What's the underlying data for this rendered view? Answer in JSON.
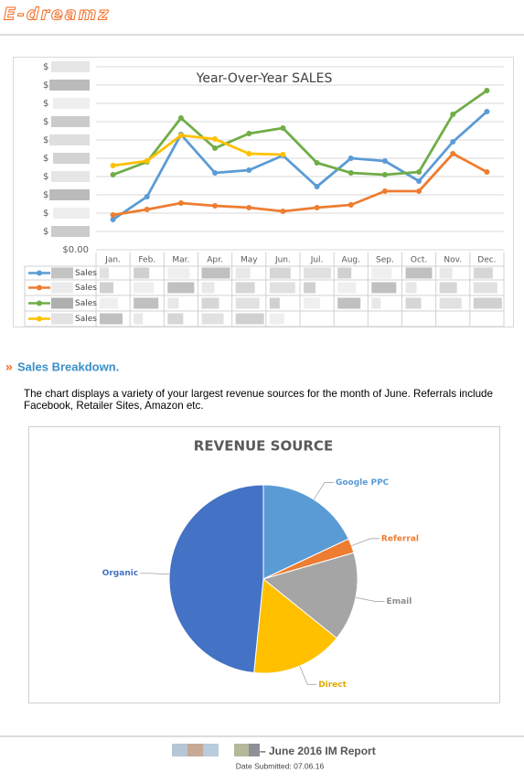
{
  "header": {
    "logo": "E-dreamz"
  },
  "chart_data": [
    {
      "type": "line",
      "title": "Year-Over-Year SALES",
      "categories": [
        "Jan.",
        "Feb.",
        "Mar.",
        "Apr.",
        "May",
        "Jun.",
        "Jul.",
        "Aug.",
        "Sep.",
        "Oct.",
        "Nov.",
        "Dec."
      ],
      "ylim": [
        0,
        10
      ],
      "yticks": [
        {
          "value": 0,
          "label": "$0.00"
        },
        {
          "value": 1,
          "label": "$"
        },
        {
          "value": 2,
          "label": "$"
        },
        {
          "value": 3,
          "label": "$"
        },
        {
          "value": 4,
          "label": "$"
        },
        {
          "value": 5,
          "label": "$"
        },
        {
          "value": 6,
          "label": "$"
        },
        {
          "value": 7,
          "label": "$"
        },
        {
          "value": 8,
          "label": "$"
        },
        {
          "value": 9,
          "label": "$"
        },
        {
          "value": 10,
          "label": "$"
        }
      ],
      "grid": true,
      "series": [
        {
          "name": "Sales",
          "color": "#5b9bd5",
          "values": [
            1.65,
            2.9,
            6.3,
            4.2,
            4.35,
            5.15,
            3.45,
            5.0,
            4.85,
            3.75,
            5.9,
            7.55
          ]
        },
        {
          "name": "Sales",
          "color": "#ed7d31",
          "values": [
            1.9,
            2.2,
            2.55,
            2.4,
            2.3,
            2.1,
            2.3,
            2.45,
            3.2,
            3.2,
            5.25,
            4.25
          ]
        },
        {
          "name": "Sales",
          "color": "#70ad47",
          "values": [
            4.1,
            4.8,
            7.2,
            5.55,
            6.35,
            6.65,
            4.75,
            4.2,
            4.1,
            4.25,
            7.4,
            8.7
          ]
        },
        {
          "name": "Sales",
          "color": "#ffc000",
          "values": [
            4.6,
            4.85,
            6.25,
            6.05,
            5.25,
            5.2,
            null,
            null,
            null,
            null,
            null,
            null
          ]
        }
      ]
    },
    {
      "type": "pie",
      "title": "REVENUE SOURCE",
      "categories": [
        "Google PPC",
        "Referral",
        "Email",
        "Direct",
        "Organic"
      ],
      "values": [
        18,
        2.5,
        15.3,
        15.8,
        48.4
      ],
      "colors": [
        "#5b9bd5",
        "#ed7d31",
        "#a5a5a5",
        "#ffc000",
        "#4472c4"
      ],
      "label_colors": [
        "#5b9bd5",
        "#ed7d31",
        "#8c8c8c",
        "#e0a800",
        "#4472c4"
      ]
    }
  ],
  "section": {
    "marker": "»",
    "heading": "Sales Breakdown.",
    "text": "The chart displays a variety of your largest revenue sources for the month of June. Referrals include Facebook, Retailer Sites, Amazon etc."
  },
  "footer": {
    "title": "– June 2016 IM Report",
    "date": "Date Submitted: 07.06.16"
  }
}
